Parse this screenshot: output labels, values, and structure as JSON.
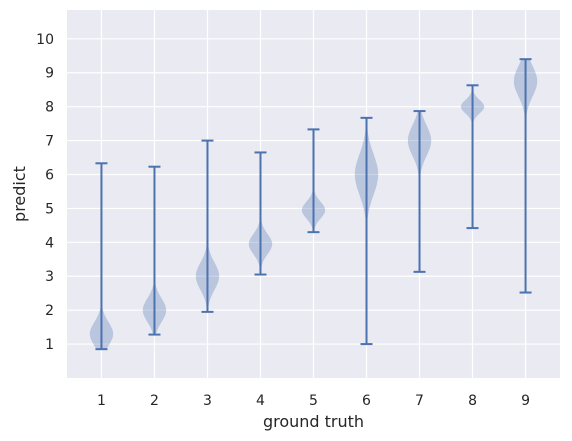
{
  "chart_data": {
    "type": "violin",
    "xlabel": "ground truth",
    "ylabel": "predict",
    "x_ticks": [
      "1",
      "2",
      "3",
      "4",
      "5",
      "6",
      "7",
      "8",
      "9"
    ],
    "y_ticks": [
      "1",
      "2",
      "3",
      "4",
      "5",
      "6",
      "7",
      "8",
      "9",
      "10"
    ],
    "ylim": [
      0,
      10.85
    ],
    "xlim": [
      0.35,
      9.65
    ],
    "grid": true,
    "colors": {
      "background": "#eaeaf2",
      "grid": "#ffffff",
      "violin": "#4c72b0"
    },
    "series": [
      {
        "x": 1,
        "min": 0.85,
        "max": 6.33,
        "center": 1.3,
        "halfwidth": 0.22,
        "sigma": 0.35
      },
      {
        "x": 2,
        "min": 1.28,
        "max": 6.23,
        "center": 2.0,
        "halfwidth": 0.22,
        "sigma": 0.35
      },
      {
        "x": 3,
        "min": 1.95,
        "max": 7.0,
        "center": 3.0,
        "halfwidth": 0.22,
        "sigma": 0.4
      },
      {
        "x": 4,
        "min": 3.05,
        "max": 6.65,
        "center": 3.95,
        "halfwidth": 0.22,
        "sigma": 0.3
      },
      {
        "x": 5,
        "min": 4.3,
        "max": 7.33,
        "center": 4.95,
        "halfwidth": 0.22,
        "sigma": 0.25
      },
      {
        "x": 6,
        "min": 1.0,
        "max": 7.67,
        "center": 6.0,
        "halfwidth": 0.22,
        "sigma": 0.6
      },
      {
        "x": 7,
        "min": 3.13,
        "max": 7.87,
        "center": 7.0,
        "halfwidth": 0.22,
        "sigma": 0.45
      },
      {
        "x": 8,
        "min": 4.42,
        "max": 8.63,
        "center": 8.0,
        "halfwidth": 0.22,
        "sigma": 0.2
      },
      {
        "x": 9,
        "min": 2.52,
        "max": 9.4,
        "center": 8.75,
        "halfwidth": 0.22,
        "sigma": 0.45
      }
    ]
  }
}
